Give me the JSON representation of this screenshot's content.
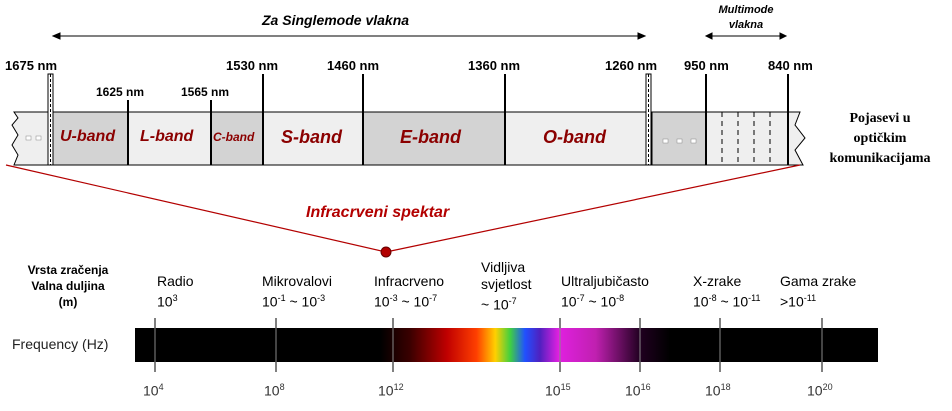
{
  "top": {
    "singlemode_label": "Za Singlemode vlakna",
    "multimode_line1": "Multimode",
    "multimode_line2": "vlakna"
  },
  "wavelengths": [
    "1675 nm",
    "1625 nm",
    "1565 nm",
    "1530 nm",
    "1460 nm",
    "1360 nm",
    "1260 nm",
    "950 nm",
    "840 nm"
  ],
  "bands": [
    "U-band",
    "L-band",
    "C-band",
    "S-band",
    "E-band",
    "O-band"
  ],
  "side_label": [
    "Pojasevi u",
    "optičkim",
    "komunikacijama"
  ],
  "spectrum_label": "Infracrveni spektar",
  "row_header": [
    "Vrsta zračenja",
    "Valna duljina",
    "(m)"
  ],
  "frequency_label": "Frequency (Hz)",
  "radiation": [
    {
      "name": "Radio",
      "base": "10",
      "exp": "3",
      "base2": "",
      "exp2": ""
    },
    {
      "name": "Mikrovalovi",
      "base": "10",
      "exp": "-1",
      "base2": " ~ 10",
      "exp2": "-3"
    },
    {
      "name": "Infracrveno",
      "base": "10",
      "exp": "-3",
      "base2": " ~ 10",
      "exp2": "-7"
    },
    {
      "name": "Vidljiva svjetlost",
      "base": "~ 10",
      "exp": "-7",
      "base2": "",
      "exp2": ""
    },
    {
      "name": "Ultraljubičasto",
      "base": "10",
      "exp": "-7",
      "base2": " ~ 10",
      "exp2": "-8"
    },
    {
      "name": "X-zrake",
      "base": "10",
      "exp": "-8",
      "base2": " ~ 10",
      "exp2": "-11"
    },
    {
      "name": "Gama zrake",
      "base": ">10",
      "exp": "-11",
      "base2": "",
      "exp2": ""
    }
  ],
  "freq_ticks": [
    {
      "base": "10",
      "exp": "4"
    },
    {
      "base": "10",
      "exp": "8"
    },
    {
      "base": "10",
      "exp": "12"
    },
    {
      "base": "10",
      "exp": "15"
    },
    {
      "base": "10",
      "exp": "16"
    },
    {
      "base": "10",
      "exp": "18"
    },
    {
      "base": "10",
      "exp": "20"
    }
  ],
  "colors": {
    "band_text": "#8b0000",
    "band_gray": "#d3d3d3",
    "band_light": "#efefef",
    "marker": "#b30000"
  }
}
